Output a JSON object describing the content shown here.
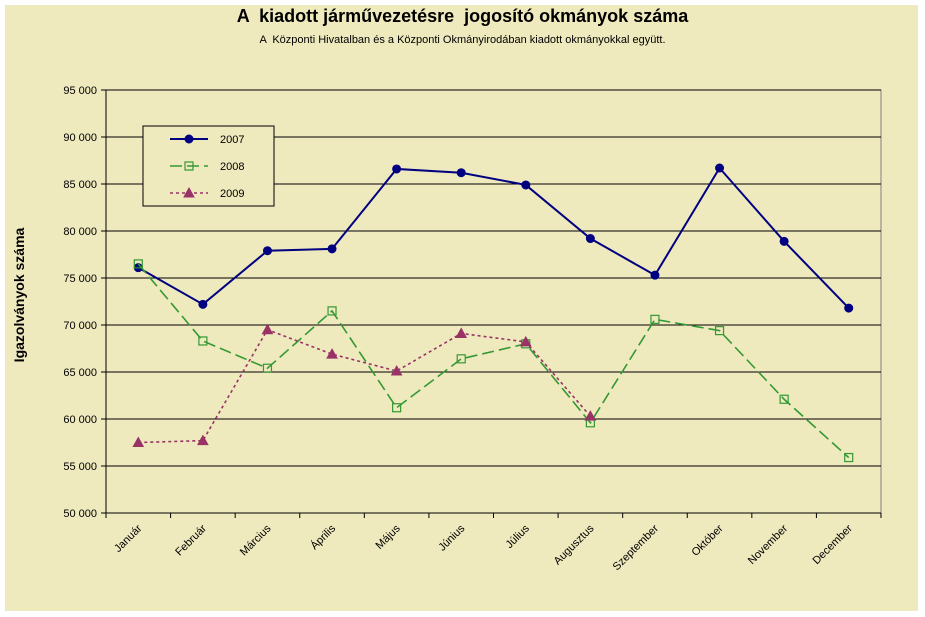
{
  "chart_data": {
    "type": "line",
    "title": "A  kiadott járművezetésre  jogosító okmányok száma",
    "subtitle": "A  Központi Hivatalban és a Központi Okmányirodában kiadott okmányokkal együtt.",
    "xlabel": "",
    "ylabel": "Igazolványok száma",
    "ylim": [
      50000,
      95000
    ],
    "ytick_step": 5000,
    "ytick_labels": [
      "50 000",
      "55 000",
      "60 000",
      "65 000",
      "70 000",
      "75 000",
      "80 000",
      "85 000",
      "90 000",
      "95 000"
    ],
    "grid": true,
    "legend_position": "top-left",
    "categories": [
      "Január",
      "Február",
      "Március",
      "Április",
      "Május",
      "Június",
      "Július",
      "Augusztus",
      "Szeptember",
      "Október",
      "November",
      "December"
    ],
    "series": [
      {
        "name": "2007",
        "color": "#000080",
        "marker": "circle",
        "dash": "solid",
        "values": [
          76100,
          72200,
          77900,
          78100,
          86600,
          86200,
          84900,
          79200,
          75300,
          86700,
          78900,
          71800
        ]
      },
      {
        "name": "2008",
        "color": "#339933",
        "marker": "square",
        "dash": "long-dash",
        "values": [
          76500,
          68300,
          65400,
          71500,
          61200,
          66400,
          68000,
          59600,
          70600,
          69400,
          62100,
          55900
        ]
      },
      {
        "name": "2009",
        "color": "#993366",
        "marker": "triangle",
        "dash": "dotted",
        "values": [
          57500,
          57700,
          69500,
          66900,
          65100,
          69100,
          68200,
          60300,
          null,
          null,
          null,
          null
        ]
      }
    ]
  }
}
